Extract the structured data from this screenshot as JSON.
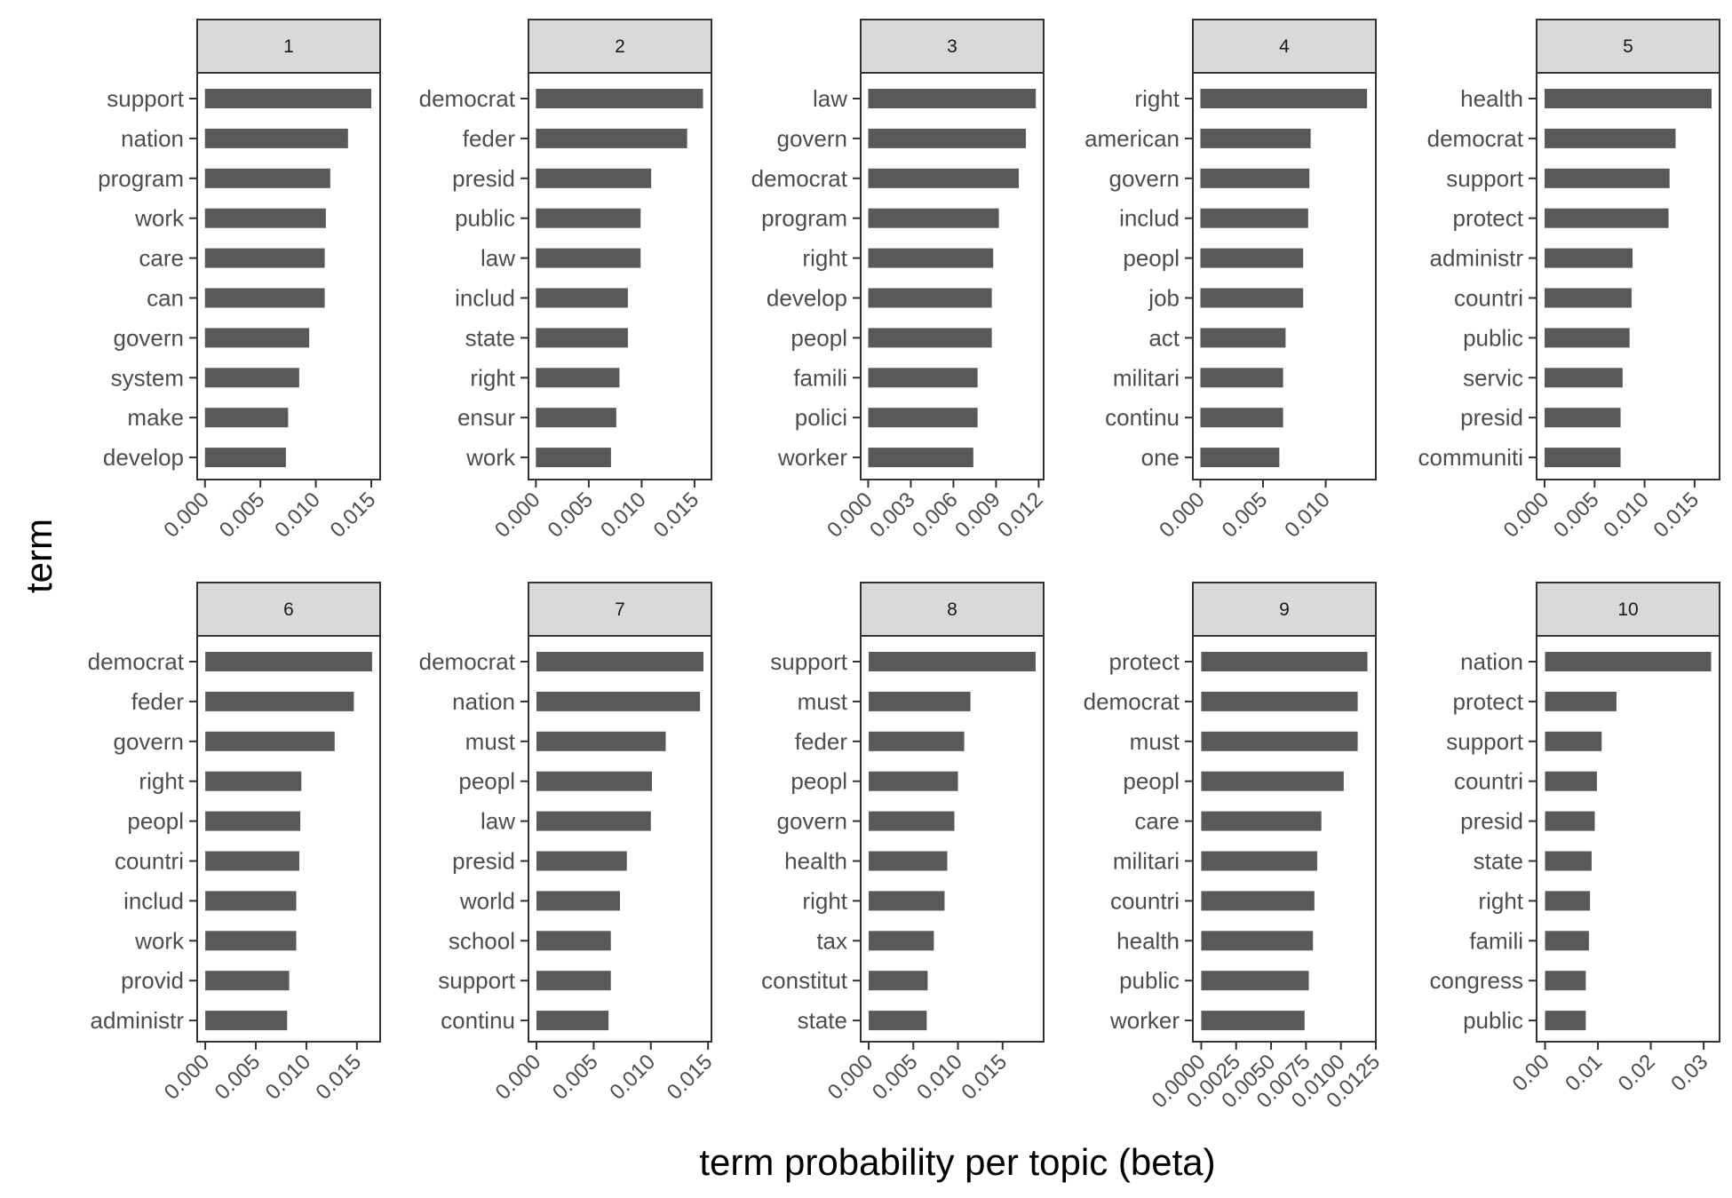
{
  "chart_data": {
    "type": "bar",
    "orientation": "horizontal",
    "xlabel": "term probability per topic (beta)",
    "ylabel": "term",
    "colors": {
      "bar": "#595959",
      "strip_fill": "#d9d9d9",
      "border": "#333333",
      "axis_text": "#4d4d4d"
    },
    "panels": [
      {
        "topic": "1",
        "terms": [
          "support",
          "nation",
          "program",
          "work",
          "care",
          "can",
          "govern",
          "system",
          "make",
          "develop"
        ],
        "values": [
          0.015,
          0.0129,
          0.0113,
          0.0109,
          0.0108,
          0.0108,
          0.0094,
          0.0085,
          0.0075,
          0.0073
        ],
        "xlim": [
          -0.0007,
          0.0158
        ],
        "ticks": [
          0,
          0.005,
          0.01,
          0.015
        ],
        "tick_labels": [
          "0.000",
          "0.005",
          "0.010",
          "0.015"
        ]
      },
      {
        "topic": "2",
        "terms": [
          "democrat",
          "feder",
          "presid",
          "public",
          "law",
          "includ",
          "state",
          "right",
          "ensur",
          "work"
        ],
        "values": [
          0.0158,
          0.0143,
          0.0109,
          0.0099,
          0.0099,
          0.0087,
          0.0087,
          0.0079,
          0.0076,
          0.0071
        ],
        "xlim": [
          -0.0007,
          0.0166
        ],
        "ticks": [
          0,
          0.005,
          0.01,
          0.015
        ],
        "tick_labels": [
          "0.000",
          "0.005",
          "0.010",
          "0.015"
        ]
      },
      {
        "topic": "3",
        "terms": [
          "law",
          "govern",
          "democrat",
          "program",
          "right",
          "develop",
          "peopl",
          "famili",
          "polici",
          "worker"
        ],
        "values": [
          0.0118,
          0.0111,
          0.0106,
          0.0092,
          0.0088,
          0.0087,
          0.0087,
          0.0077,
          0.0077,
          0.0074
        ],
        "xlim": [
          -0.00053,
          0.01235
        ],
        "ticks": [
          0,
          0.003,
          0.006,
          0.009,
          0.012
        ],
        "tick_labels": [
          "0.000",
          "0.003",
          "0.006",
          "0.009",
          "0.012"
        ]
      },
      {
        "topic": "4",
        "terms": [
          "right",
          "american",
          "govern",
          "includ",
          "peopl",
          "job",
          "act",
          "militari",
          "continu",
          "one"
        ],
        "values": [
          0.0133,
          0.0088,
          0.0087,
          0.0086,
          0.0082,
          0.0082,
          0.0068,
          0.0066,
          0.0066,
          0.0063
        ],
        "xlim": [
          -0.0006,
          0.014
        ],
        "ticks": [
          0,
          0.005,
          0.01
        ],
        "tick_labels": [
          "0.000",
          "0.005",
          "0.010"
        ]
      },
      {
        "topic": "5",
        "terms": [
          "health",
          "democrat",
          "support",
          "protect",
          "administr",
          "countri",
          "public",
          "servic",
          "presid",
          "communiti"
        ],
        "values": [
          0.0167,
          0.0131,
          0.0125,
          0.0124,
          0.0088,
          0.0087,
          0.0085,
          0.0078,
          0.0076,
          0.0076
        ],
        "xlim": [
          -0.0008,
          0.0175
        ],
        "ticks": [
          0,
          0.005,
          0.01,
          0.015
        ],
        "tick_labels": [
          "0.000",
          "0.005",
          "0.010",
          "0.015"
        ]
      },
      {
        "topic": "6",
        "terms": [
          "democrat",
          "feder",
          "govern",
          "right",
          "peopl",
          "countri",
          "includ",
          "work",
          "provid",
          "administr"
        ],
        "values": [
          0.0165,
          0.0147,
          0.0128,
          0.0095,
          0.0094,
          0.0093,
          0.009,
          0.009,
          0.0083,
          0.0081
        ],
        "xlim": [
          -0.0008,
          0.0173
        ],
        "ticks": [
          0,
          0.005,
          0.01,
          0.015
        ],
        "tick_labels": [
          "0.000",
          "0.005",
          "0.010",
          "0.015"
        ]
      },
      {
        "topic": "7",
        "terms": [
          "democrat",
          "nation",
          "must",
          "peopl",
          "law",
          "presid",
          "world",
          "school",
          "support",
          "continu"
        ],
        "values": [
          0.0146,
          0.0143,
          0.0113,
          0.0101,
          0.01,
          0.0079,
          0.0073,
          0.0065,
          0.0065,
          0.0063
        ],
        "xlim": [
          -0.0007,
          0.0153
        ],
        "ticks": [
          0,
          0.005,
          0.01,
          0.015
        ],
        "tick_labels": [
          "0.000",
          "0.005",
          "0.010",
          "0.015"
        ]
      },
      {
        "topic": "8",
        "terms": [
          "support",
          "must",
          "feder",
          "peopl",
          "govern",
          "health",
          "right",
          "tax",
          "constitut",
          "state"
        ],
        "values": [
          0.0187,
          0.0114,
          0.0107,
          0.01,
          0.0096,
          0.0088,
          0.0085,
          0.0073,
          0.0066,
          0.0065
        ],
        "xlim": [
          -0.0009,
          0.0196
        ],
        "ticks": [
          0,
          0.005,
          0.01,
          0.015
        ],
        "tick_labels": [
          "0.000",
          "0.005",
          "0.010",
          "0.015"
        ]
      },
      {
        "topic": "9",
        "terms": [
          "protect",
          "democrat",
          "must",
          "peopl",
          "care",
          "militari",
          "countri",
          "health",
          "public",
          "worker"
        ],
        "values": [
          0.0119,
          0.0112,
          0.0112,
          0.0102,
          0.0086,
          0.0083,
          0.0081,
          0.008,
          0.0077,
          0.0074
        ],
        "xlim": [
          -0.0006,
          0.0125
        ],
        "ticks": [
          0,
          0.0025,
          0.005,
          0.0075,
          0.01,
          0.0125
        ],
        "tick_labels": [
          "0.0000",
          "0.0025",
          "0.0050",
          "0.0075",
          "0.0100",
          "0.0125"
        ]
      },
      {
        "topic": "10",
        "terms": [
          "nation",
          "protect",
          "support",
          "countri",
          "presid",
          "state",
          "right",
          "famili",
          "congress",
          "public"
        ],
        "values": [
          0.0314,
          0.0135,
          0.0107,
          0.0098,
          0.0094,
          0.0088,
          0.0085,
          0.0083,
          0.0077,
          0.0077
        ],
        "xlim": [
          -0.0016,
          0.033
        ],
        "ticks": [
          0,
          0.01,
          0.02,
          0.03
        ],
        "tick_labels": [
          "0.00",
          "0.01",
          "0.02",
          "0.03"
        ]
      }
    ]
  }
}
